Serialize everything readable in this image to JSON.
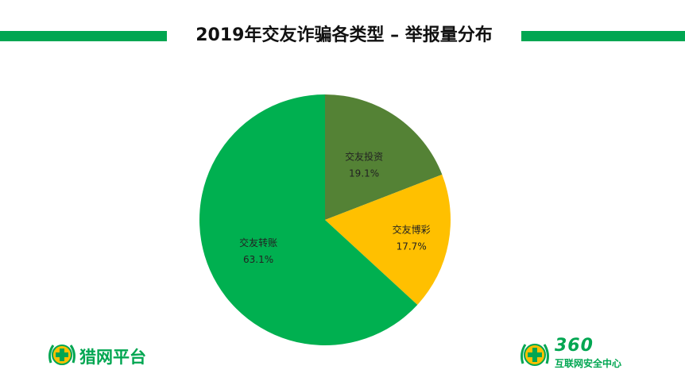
{
  "header": {
    "title": "2019年交友诈骗各类型 – 举报量分布",
    "accent_color": "#00a651"
  },
  "chart_data": {
    "type": "pie",
    "title": "2019年交友诈骗各类型 – 举报量分布",
    "slices": [
      {
        "label": "交友投资",
        "value": 19.1,
        "value_label": "19.1%",
        "color": "#548235"
      },
      {
        "label": "交友博彩",
        "value": 17.7,
        "value_label": "17.7%",
        "color": "#ffc000"
      },
      {
        "label": "交友转账",
        "value": 63.1,
        "value_label": "63.1%",
        "color": "#00b050"
      }
    ]
  },
  "logos": {
    "left": {
      "text": "猎网平台",
      "icon": "hunting-net-logo-icon"
    },
    "right": {
      "number": "360",
      "text": "互联网安全中心",
      "icon": "360-logo-icon"
    }
  }
}
